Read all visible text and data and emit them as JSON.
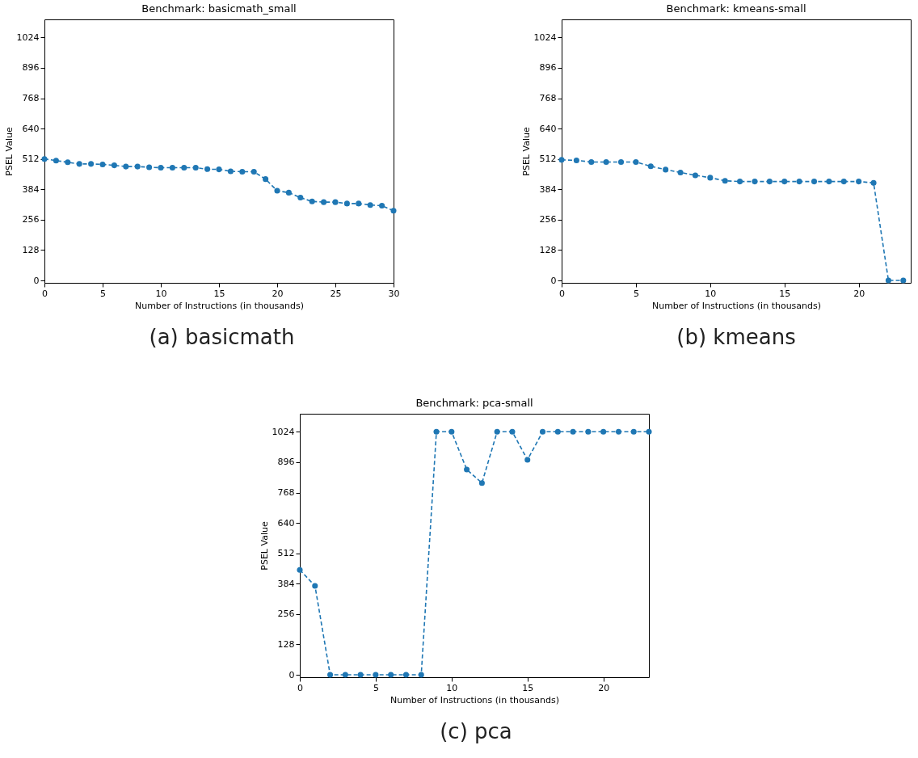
{
  "chart_data": [
    {
      "type": "line",
      "title": "Benchmark: basicmath_small",
      "xlabel": "Number of Instructions (in thousands)",
      "ylabel": "PSEL Value",
      "annotations": [
        "(a) basicmath"
      ],
      "marker": "circle",
      "line_style": "dashed",
      "xlim": [
        0,
        30
      ],
      "xticks": [
        0,
        5,
        10,
        15,
        20,
        25,
        30
      ],
      "ylim": [
        -10,
        1100
      ],
      "yticks": [
        0,
        128,
        256,
        384,
        512,
        640,
        768,
        896,
        1024
      ],
      "x": [
        0,
        1,
        2,
        3,
        4,
        5,
        6,
        7,
        8,
        9,
        10,
        11,
        12,
        13,
        14,
        15,
        16,
        17,
        18,
        19,
        20,
        21,
        22,
        23,
        24,
        25,
        26,
        27,
        28,
        29,
        30
      ],
      "series": [
        {
          "color": "#1f77b4",
          "values": [
            512,
            505,
            498,
            491,
            491,
            489,
            485,
            480,
            480,
            477,
            475,
            475,
            475,
            475,
            469,
            468,
            460,
            458,
            458,
            427,
            378,
            370,
            349,
            333,
            330,
            330,
            324,
            324,
            318,
            315,
            294
          ]
        }
      ]
    },
    {
      "type": "line",
      "title": "Benchmark: kmeans-small",
      "xlabel": "Number of Instructions (in thousands)",
      "ylabel": "PSEL Value",
      "annotations": [
        "(b) kmeans"
      ],
      "marker": "circle",
      "line_style": "dashed",
      "xlim": [
        0,
        23.5
      ],
      "xticks": [
        0,
        5,
        10,
        15,
        20
      ],
      "ylim": [
        -10,
        1100
      ],
      "yticks": [
        0,
        128,
        256,
        384,
        512,
        640,
        768,
        896,
        1024
      ],
      "x": [
        0,
        1,
        2,
        3,
        4,
        5,
        6,
        7,
        8,
        9,
        10,
        11,
        12,
        13,
        14,
        15,
        16,
        17,
        18,
        19,
        20,
        21,
        22,
        23
      ],
      "series": [
        {
          "color": "#1f77b4",
          "values": [
            508,
            506,
            499,
            499,
            499,
            499,
            481,
            467,
            455,
            443,
            433,
            420,
            417,
            417,
            417,
            417,
            417,
            417,
            417,
            417,
            417,
            411,
            0,
            0
          ]
        }
      ]
    },
    {
      "type": "line",
      "title": "Benchmark: pca-small",
      "xlabel": "Number of Instructions (in thousands)",
      "ylabel": "PSEL Value",
      "annotations": [
        "(c) pca"
      ],
      "marker": "circle",
      "line_style": "dashed",
      "xlim": [
        0,
        23
      ],
      "xticks": [
        0,
        5,
        10,
        15,
        20
      ],
      "ylim": [
        -10,
        1100
      ],
      "yticks": [
        0,
        128,
        256,
        384,
        512,
        640,
        768,
        896,
        1024
      ],
      "x": [
        0,
        1,
        2,
        3,
        4,
        5,
        6,
        7,
        8,
        9,
        10,
        11,
        12,
        13,
        14,
        15,
        16,
        17,
        18,
        19,
        20,
        21,
        22,
        23
      ],
      "series": [
        {
          "color": "#1f77b4",
          "values": [
            442,
            375,
            0,
            0,
            0,
            0,
            0,
            0,
            0,
            1024,
            1024,
            865,
            808,
            1024,
            1024,
            906,
            1024,
            1024,
            1024,
            1024,
            1024,
            1024,
            1024,
            1024
          ]
        }
      ]
    }
  ]
}
